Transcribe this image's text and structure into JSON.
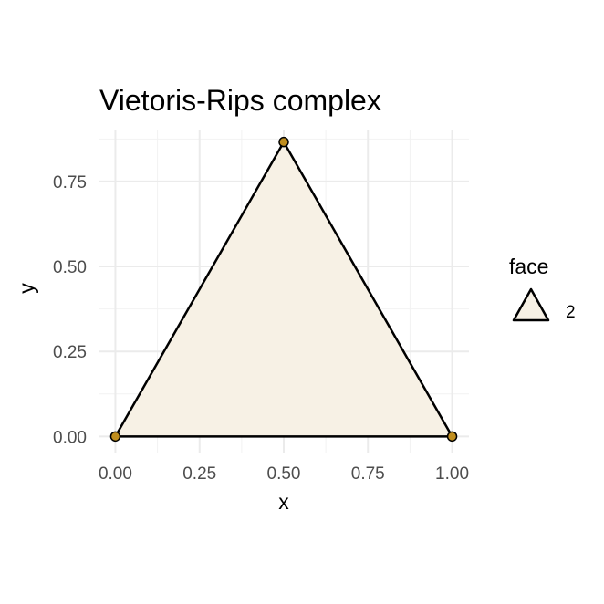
{
  "chart_data": {
    "type": "scatter",
    "title": "Vietoris-Rips complex",
    "xlabel": "x",
    "ylabel": "y",
    "xlim": [
      -0.05,
      1.05
    ],
    "ylim": [
      -0.05,
      0.9
    ],
    "x_ticks": [
      {
        "value": 0.0,
        "label": "0.00"
      },
      {
        "value": 0.25,
        "label": "0.25"
      },
      {
        "value": 0.5,
        "label": "0.50"
      },
      {
        "value": 0.75,
        "label": "0.75"
      },
      {
        "value": 1.0,
        "label": "1.00"
      }
    ],
    "y_ticks": [
      {
        "value": 0.0,
        "label": "0.00"
      },
      {
        "value": 0.25,
        "label": "0.25"
      },
      {
        "value": 0.5,
        "label": "0.50"
      },
      {
        "value": 0.75,
        "label": "0.75"
      }
    ],
    "grid": true,
    "vertices": [
      {
        "x": 0.0,
        "y": 0.0
      },
      {
        "x": 0.5,
        "y": 0.866
      },
      {
        "x": 1.0,
        "y": 0.0
      }
    ],
    "faces": [
      {
        "dimension": "2",
        "vertices": [
          0,
          1,
          2
        ]
      }
    ],
    "legend": {
      "title": "face",
      "position": "right",
      "entries": [
        {
          "label": "2"
        }
      ]
    },
    "colors": {
      "face_fill": "#f7f1e5",
      "edge": "#000000",
      "vertex_fill": "#c08e1e",
      "vertex_stroke": "#000000",
      "grid": "#ebebeb"
    }
  }
}
